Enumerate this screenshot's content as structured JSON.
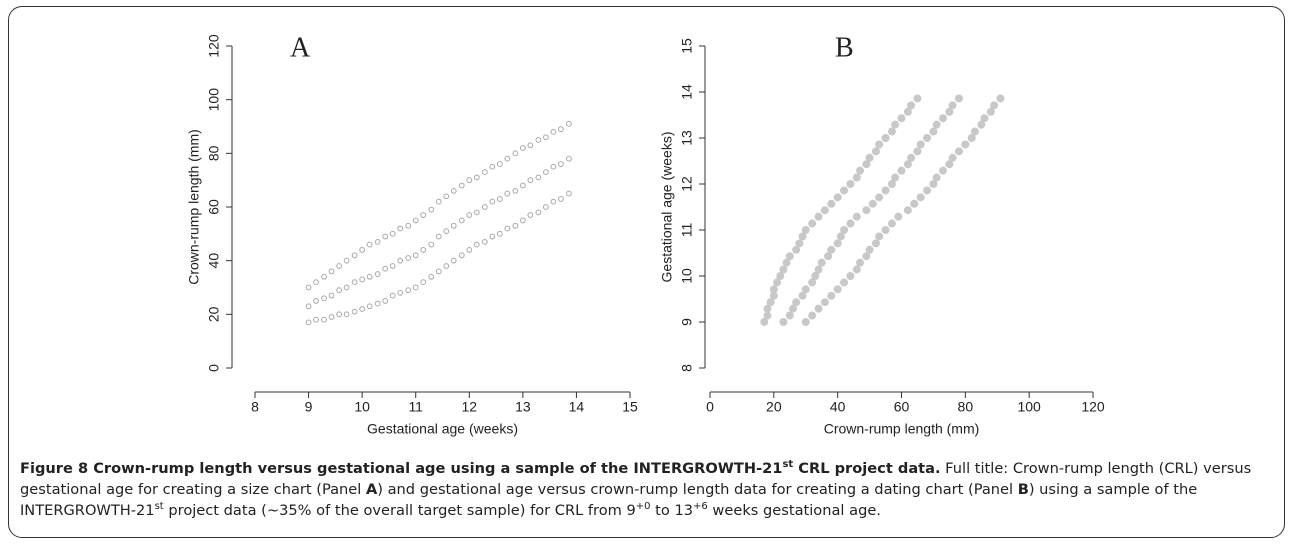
{
  "chart_data": [
    {
      "type": "scatter",
      "title": "A",
      "x_label": "Gestational age (weeks)",
      "y_label": "Crown-rump length (mm)",
      "color": "#a8a8a8",
      "marker": "hollow",
      "xlim": [
        8,
        15
      ],
      "xticks": [
        8,
        9,
        10,
        11,
        12,
        13,
        14,
        15
      ],
      "ylim": [
        0,
        120
      ],
      "yticks": [
        0,
        20,
        40,
        60,
        80,
        100,
        120
      ],
      "x": [
        9,
        9,
        9,
        9.14,
        9.14,
        9.14,
        9.29,
        9.29,
        9.29,
        9.43,
        9.43,
        9.43,
        9.57,
        9.57,
        9.57,
        9.71,
        9.71,
        9.71,
        9.86,
        9.86,
        9.86,
        10,
        10,
        10,
        10.14,
        10.14,
        10.14,
        10.29,
        10.29,
        10.29,
        10.43,
        10.43,
        10.43,
        10.57,
        10.57,
        10.57,
        10.71,
        10.71,
        10.71,
        10.86,
        10.86,
        10.86,
        11,
        11,
        11,
        11.14,
        11.14,
        11.14,
        11.29,
        11.29,
        11.29,
        11.43,
        11.43,
        11.43,
        11.57,
        11.57,
        11.57,
        11.71,
        11.71,
        11.71,
        11.86,
        11.86,
        11.86,
        12,
        12,
        12,
        12.14,
        12.14,
        12.14,
        12.29,
        12.29,
        12.29,
        12.43,
        12.43,
        12.43,
        12.57,
        12.57,
        12.57,
        12.71,
        12.71,
        12.71,
        12.86,
        12.86,
        12.86,
        13,
        13,
        13,
        13.14,
        13.14,
        13.14,
        13.29,
        13.29,
        13.29,
        13.43,
        13.43,
        13.43,
        13.57,
        13.57,
        13.57,
        13.71,
        13.71,
        13.71,
        13.86,
        13.86,
        13.86
      ],
      "values": [
        17,
        23,
        30,
        18,
        25,
        32,
        18,
        26,
        34,
        19,
        27,
        36,
        20,
        29,
        38,
        20,
        30,
        40,
        21,
        32,
        42,
        22,
        33,
        44,
        23,
        34,
        46,
        24,
        35,
        47,
        25,
        37,
        49,
        27,
        38,
        50,
        28,
        40,
        52,
        29,
        41,
        53,
        30,
        42,
        55,
        32,
        44,
        57,
        34,
        46,
        59,
        36,
        49,
        62,
        38,
        51,
        64,
        40,
        53,
        66,
        42,
        55,
        68,
        44,
        57,
        70,
        46,
        58,
        71,
        47,
        60,
        73,
        49,
        62,
        75,
        50,
        63,
        76,
        52,
        65,
        78,
        53,
        66,
        80,
        55,
        68,
        82,
        57,
        70,
        83,
        58,
        71,
        85,
        60,
        73,
        86,
        62,
        75,
        88,
        63,
        76,
        89,
        65,
        78,
        91
      ]
    },
    {
      "type": "scatter",
      "title": "B",
      "x_label": "Crown-rump length (mm)",
      "y_label": "Gestational age (weeks)",
      "color": "#c8c8c8",
      "marker": "filled",
      "xlim": [
        0,
        120
      ],
      "xticks": [
        0,
        20,
        40,
        60,
        80,
        100,
        120
      ],
      "ylim": [
        8,
        15
      ],
      "yticks": [
        8,
        9,
        10,
        11,
        12,
        13,
        14,
        15
      ],
      "x": [
        17,
        23,
        30,
        18,
        25,
        32,
        18,
        26,
        34,
        19,
        27,
        36,
        20,
        29,
        38,
        20,
        30,
        40,
        21,
        32,
        42,
        22,
        33,
        44,
        23,
        34,
        46,
        24,
        35,
        47,
        25,
        37,
        49,
        27,
        38,
        50,
        28,
        40,
        52,
        29,
        41,
        53,
        30,
        42,
        55,
        32,
        44,
        57,
        34,
        46,
        59,
        36,
        49,
        62,
        38,
        51,
        64,
        40,
        53,
        66,
        42,
        55,
        68,
        44,
        57,
        70,
        46,
        58,
        71,
        47,
        60,
        73,
        49,
        62,
        75,
        50,
        63,
        76,
        52,
        65,
        78,
        53,
        66,
        80,
        55,
        68,
        82,
        57,
        70,
        83,
        58,
        71,
        85,
        60,
        73,
        86,
        62,
        75,
        88,
        63,
        76,
        89,
        65,
        78,
        91
      ],
      "values": [
        9,
        9,
        9,
        9.14,
        9.14,
        9.14,
        9.29,
        9.29,
        9.29,
        9.43,
        9.43,
        9.43,
        9.57,
        9.57,
        9.57,
        9.71,
        9.71,
        9.71,
        9.86,
        9.86,
        9.86,
        10,
        10,
        10,
        10.14,
        10.14,
        10.14,
        10.29,
        10.29,
        10.29,
        10.43,
        10.43,
        10.43,
        10.57,
        10.57,
        10.57,
        10.71,
        10.71,
        10.71,
        10.86,
        10.86,
        10.86,
        11,
        11,
        11,
        11.14,
        11.14,
        11.14,
        11.29,
        11.29,
        11.29,
        11.43,
        11.43,
        11.43,
        11.57,
        11.57,
        11.57,
        11.71,
        11.71,
        11.71,
        11.86,
        11.86,
        11.86,
        12,
        12,
        12,
        12.14,
        12.14,
        12.14,
        12.29,
        12.29,
        12.29,
        12.43,
        12.43,
        12.43,
        12.57,
        12.57,
        12.57,
        12.71,
        12.71,
        12.71,
        12.86,
        12.86,
        12.86,
        13,
        13,
        13,
        13.14,
        13.14,
        13.14,
        13.29,
        13.29,
        13.29,
        13.43,
        13.43,
        13.43,
        13.57,
        13.57,
        13.57,
        13.71,
        13.71,
        13.71,
        13.86,
        13.86,
        13.86
      ]
    }
  ],
  "caption": [
    "Figure 8 Crown-rump length versus gestational age using a sample of the INTERGROWTH-21",
    "st",
    " CRL project data.",
    " Full title: Crown-rump length (CRL) versus gestational age for creating a size chart (Panel ",
    "A",
    ") and gestational age versus crown-rump length data for creating a dating chart (Panel ",
    "B",
    ") using a sample of the INTERGROWTH-21",
    "st",
    " project data (~35% of the overall target sample) for CRL from 9",
    "+0",
    " to 13",
    "+6",
    " weeks gestational age."
  ]
}
